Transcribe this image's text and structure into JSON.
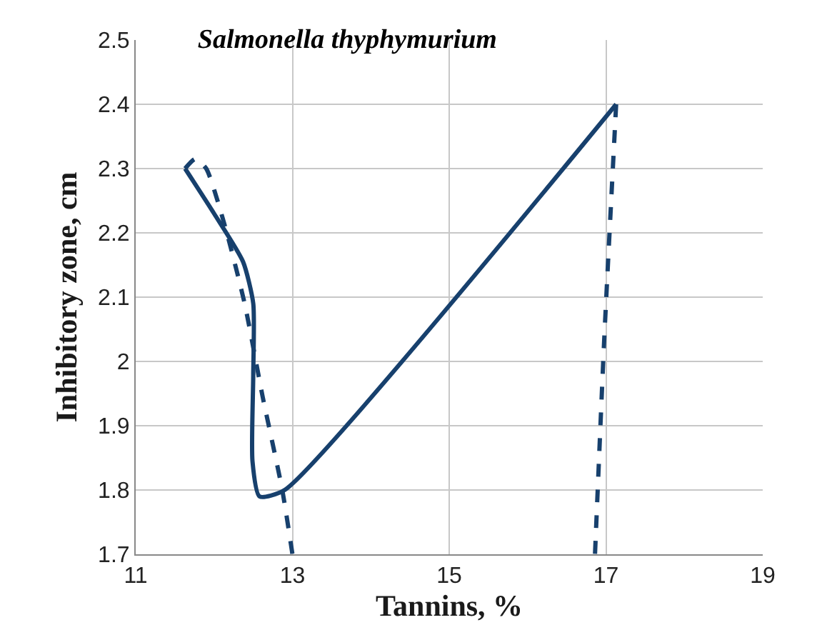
{
  "chart_data": {
    "type": "line",
    "title": "Salmonella thyphymurium",
    "xlabel": "Tannins, %",
    "ylabel": "Inhibitory zone, cm",
    "xlim": [
      11,
      19
    ],
    "xticks": [
      11,
      13,
      15,
      17,
      19
    ],
    "ylim": [
      1.7,
      2.5
    ],
    "yticks": [
      1.7,
      1.8,
      1.9,
      2,
      2.1,
      2.2,
      2.3,
      2.4,
      2.5
    ],
    "grid": true,
    "series": [
      {
        "color": "#17406d",
        "line_style": "solid",
        "x": [
          11.63,
          12.0,
          12.37,
          12.5,
          12.5,
          12.49,
          12.58,
          12.9,
          17.13
        ],
        "values": [
          2.3,
          2.23,
          2.155,
          2.09,
          1.98,
          1.845,
          1.79,
          1.8,
          2.4
        ]
      },
      {
        "color": "#17406d",
        "line_style": "dashed",
        "x": [
          11.63,
          11.76,
          11.9,
          12.14,
          12.39,
          12.62,
          12.87,
          13.0
        ],
        "values": [
          2.3,
          2.315,
          2.3,
          2.21,
          2.09,
          1.945,
          1.8,
          1.7
        ]
      },
      {
        "color": "#17406d",
        "line_style": "dashed",
        "x": [
          17.13,
          16.98,
          16.86
        ],
        "values": [
          2.4,
          2.04,
          1.7
        ]
      }
    ]
  }
}
